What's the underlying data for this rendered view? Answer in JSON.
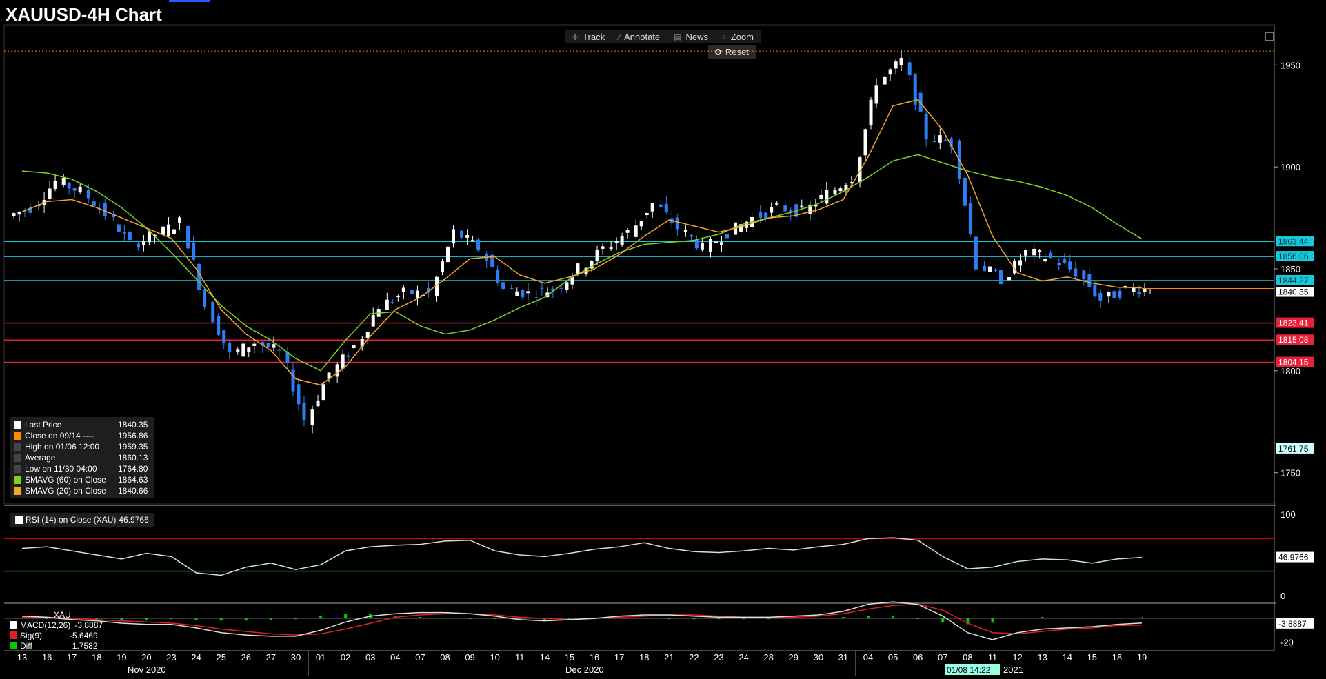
{
  "header": {
    "title": "XAUUSD-4H Chart"
  },
  "toolbar": {
    "items": [
      {
        "label": "Track",
        "icon": "crosshair-icon"
      },
      {
        "label": "Annotate",
        "icon": "pencil-icon"
      },
      {
        "label": "News",
        "icon": "news-icon"
      },
      {
        "label": "Zoom",
        "icon": "magnifier-icon"
      }
    ],
    "reset_label": "Reset"
  },
  "legend": {
    "rows": [
      {
        "label": "Last Price",
        "value": "1840.35",
        "color": "#ffffff"
      },
      {
        "label": "Close on 09/14 ----",
        "value": "1956.86",
        "color": "#ff8c00"
      },
      {
        "label": "High on 01/06 12:00",
        "value": "1959.35",
        "color": "#888888"
      },
      {
        "label": "Average",
        "value": "1860.13",
        "color": "#888888"
      },
      {
        "label": "Low on 11/30 04:00",
        "value": "1764.80",
        "color": "#888888"
      },
      {
        "label": "SMAVG (60)   on Close",
        "value": "1864.63",
        "color": "#7ed321"
      },
      {
        "label": "SMAVG (20)   on Close",
        "value": "1840.66",
        "color": "#f5a623"
      }
    ]
  },
  "rsi": {
    "label": "RSI (14)   on Close (XAU)",
    "value": "46.9766"
  },
  "macd": {
    "title": "XAU",
    "rows": [
      {
        "label": "MACD(12,26)",
        "value": "-3.8887",
        "color": "#ffffff"
      },
      {
        "label": "Sig(9)",
        "value": "-5.6469",
        "color": "#e02020"
      },
      {
        "label": "Diff",
        "value": "1.7582",
        "color": "#00cc00"
      }
    ],
    "axis_value": "-3.8887"
  },
  "cursor_date": "01/08 14:22",
  "colors": {
    "up": "#ffffff",
    "down": "#2d7df6",
    "sma60": "#7ed321",
    "sma20": "#f5a623",
    "resistance": "#17c8d8",
    "support": "#e8203a",
    "close_line": "#ff8c00"
  },
  "chart_data": [
    {
      "type": "candlestick",
      "title": "XAUUSD-4H Chart",
      "x_tick_labels": [
        "13",
        "16",
        "17",
        "18",
        "19",
        "20",
        "23",
        "24",
        "25",
        "26",
        "27",
        "30",
        "01",
        "02",
        "03",
        "04",
        "07",
        "08",
        "09",
        "10",
        "11",
        "14",
        "15",
        "16",
        "17",
        "18",
        "21",
        "22",
        "23",
        "24",
        "28",
        "29",
        "30",
        "31",
        "04",
        "05",
        "06",
        "07",
        "08",
        "11",
        "12",
        "13",
        "14",
        "15",
        "18",
        "19"
      ],
      "x_months": [
        "Nov 2020",
        "Dec 2020",
        "2021"
      ],
      "ylim": [
        1735,
        1965
      ],
      "y_ticks": [
        1750,
        1800,
        1850,
        1900,
        1950
      ],
      "close_series_by_day": [
        1880,
        1893,
        1888,
        1877,
        1862,
        1867,
        1873,
        1832,
        1808,
        1814,
        1809,
        1776,
        1799,
        1812,
        1832,
        1838,
        1838,
        1868,
        1860,
        1840,
        1838,
        1840,
        1850,
        1860,
        1868,
        1882,
        1870,
        1860,
        1868,
        1875,
        1880,
        1878,
        1887,
        1895,
        1942,
        1952,
        1915,
        1912,
        1852,
        1845,
        1858,
        1855,
        1848,
        1835,
        1840,
        1840.35
      ],
      "sma20_by_day": [
        1878,
        1883,
        1884,
        1880,
        1875,
        1870,
        1865,
        1850,
        1830,
        1818,
        1810,
        1796,
        1793,
        1802,
        1817,
        1830,
        1836,
        1845,
        1855,
        1856,
        1847,
        1843,
        1846,
        1850,
        1857,
        1866,
        1874,
        1871,
        1868,
        1871,
        1875,
        1876,
        1879,
        1884,
        1905,
        1930,
        1933,
        1918,
        1896,
        1866,
        1848,
        1844,
        1846,
        1843,
        1841,
        1840.66
      ],
      "sma60_by_day": [
        1898,
        1897,
        1894,
        1888,
        1880,
        1870,
        1858,
        1845,
        1832,
        1822,
        1815,
        1806,
        1800,
        1815,
        1828,
        1829,
        1822,
        1818,
        1820,
        1825,
        1831,
        1836,
        1845,
        1852,
        1858,
        1862,
        1863,
        1864,
        1867,
        1872,
        1875,
        1878,
        1882,
        1888,
        1895,
        1903,
        1906,
        1902,
        1898,
        1895,
        1893,
        1890,
        1886,
        1880,
        1872,
        1864.63
      ],
      "horizontal_lines": [
        {
          "value": 1863.44,
          "label": "1863.44",
          "kind": "resistance"
        },
        {
          "value": 1856.06,
          "label": "1856.06",
          "kind": "resistance"
        },
        {
          "value": 1844.27,
          "label": "1844.27",
          "kind": "resistance"
        },
        {
          "value": 1823.41,
          "label": "1823.41",
          "kind": "support"
        },
        {
          "value": 1815.08,
          "label": "1815.08",
          "kind": "support"
        },
        {
          "value": 1804.15,
          "label": "1804.15",
          "kind": "support"
        },
        {
          "value": 1956.86,
          "label": "",
          "kind": "close_line"
        }
      ],
      "last_price": "1840.35",
      "axis_marker": "1761.75",
      "high": 1959.35,
      "low": 1764.8
    },
    {
      "type": "line",
      "name": "RSI (14)",
      "ylim": [
        -5,
        105
      ],
      "y_ticks": [
        0,
        100
      ],
      "levels": [
        70,
        30
      ],
      "values_by_day": [
        58,
        60,
        55,
        50,
        45,
        52,
        48,
        28,
        25,
        35,
        40,
        32,
        38,
        55,
        60,
        62,
        63,
        67,
        68,
        55,
        50,
        48,
        52,
        57,
        60,
        65,
        58,
        54,
        53,
        55,
        58,
        56,
        60,
        63,
        70,
        71,
        68,
        48,
        33,
        35,
        42,
        45,
        44,
        40,
        45,
        46.9766
      ]
    },
    {
      "type": "line",
      "name": "MACD",
      "ylim": [
        -25,
        10
      ],
      "y_ticks": [
        -20
      ],
      "macd_by_day": [
        2,
        1,
        -1,
        -2,
        -4,
        -5,
        -5,
        -8,
        -12,
        -14,
        -15,
        -15,
        -10,
        -3,
        2,
        4,
        5,
        5,
        4,
        2,
        -1,
        -2,
        -1,
        0,
        2,
        3,
        3,
        2,
        1,
        1,
        1,
        2,
        3,
        6,
        12,
        14,
        12,
        2,
        -12,
        -18,
        -12,
        -9,
        -8,
        -7,
        -5,
        -3.8887
      ],
      "signal_by_day": [
        1,
        1,
        0,
        -1,
        -2,
        -3,
        -4,
        -6,
        -9,
        -11,
        -13,
        -14,
        -13,
        -9,
        -4,
        1,
        3,
        4,
        4,
        3,
        1,
        0,
        -1,
        0,
        1,
        2,
        3,
        3,
        2,
        1,
        1,
        1,
        2,
        4,
        8,
        11,
        12,
        7,
        -4,
        -12,
        -13,
        -11,
        -9,
        -8,
        -6,
        -5.6469
      ],
      "diff_latest": 1.7582
    }
  ]
}
